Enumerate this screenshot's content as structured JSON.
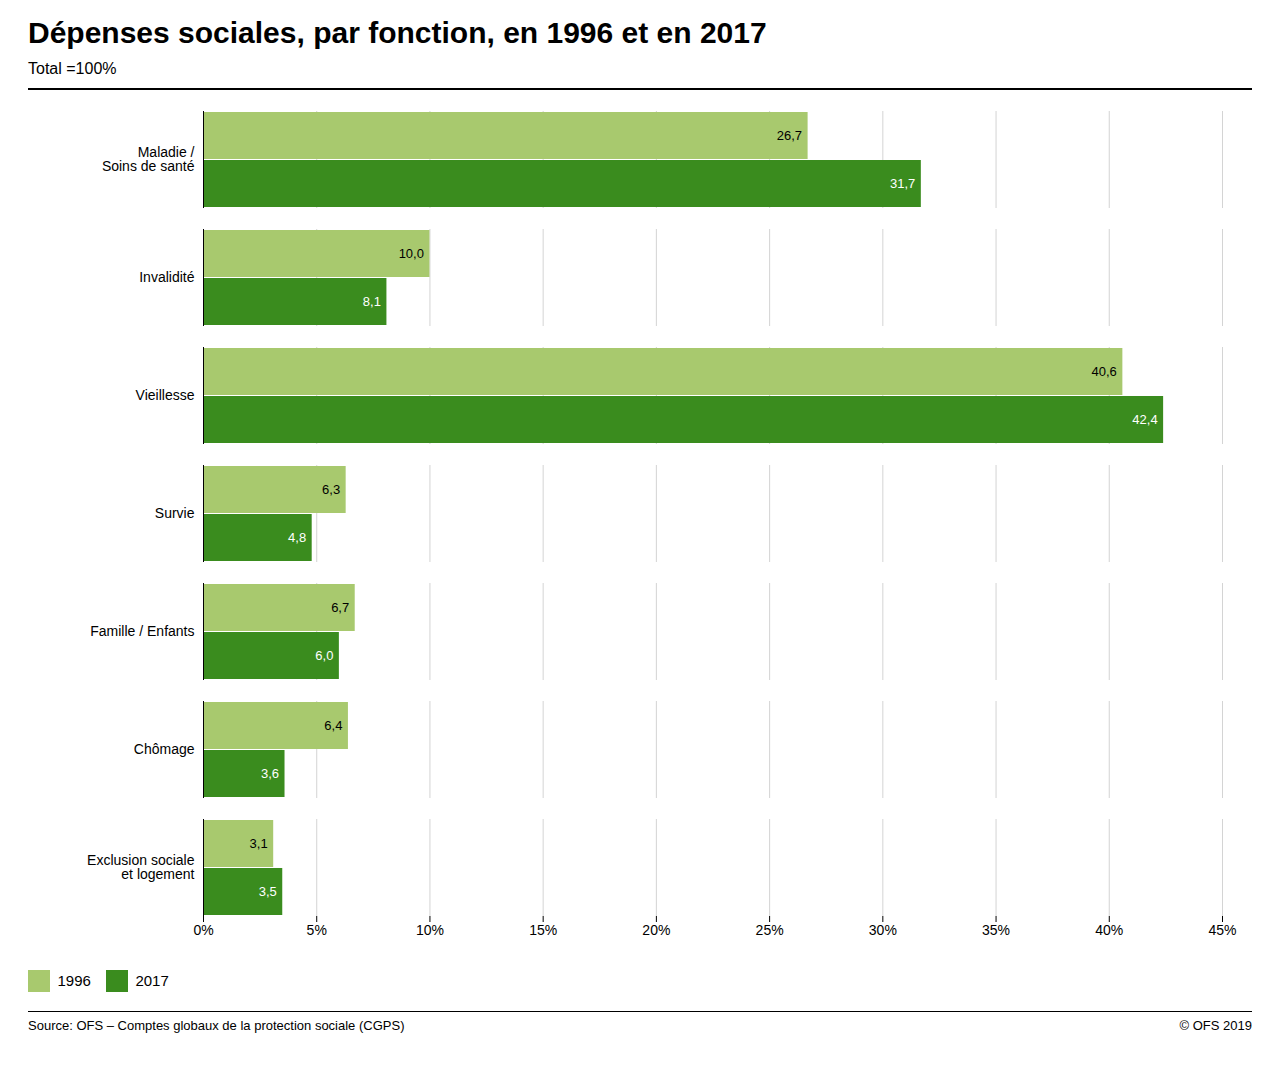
{
  "chart_data": {
    "type": "bar",
    "orientation": "horizontal",
    "title": "Dépenses sociales, par fonction, en 1996 et en 2017",
    "subtitle": "Total =100%",
    "source": "Source: OFS – Comptes globaux de la protection sociale (CGPS)",
    "copyright": "© OFS 2019",
    "categories": [
      "Maladie /\nSoins de santé",
      "Invalidité",
      "Vieillesse",
      "Survie",
      "Famille / Enfants",
      "Chômage",
      "Exclusion sociale\net logement"
    ],
    "series": [
      {
        "name": "1996",
        "color": "#a8c96e",
        "values": [
          26.7,
          10.0,
          40.6,
          6.3,
          6.7,
          6.4,
          3.1
        ],
        "value_labels": [
          "26,7",
          "10,0",
          "40,6",
          "6,3",
          "6,7",
          "6,4",
          "3,1"
        ]
      },
      {
        "name": "2017",
        "color": "#3a8c1e",
        "values": [
          31.7,
          8.1,
          42.4,
          4.8,
          6.0,
          3.6,
          3.5
        ],
        "value_labels": [
          "31,7",
          "8,1",
          "42,4",
          "4,8",
          "6,0",
          "3,6",
          "3,5"
        ]
      }
    ],
    "xlim": [
      0,
      45
    ],
    "xticks": [
      {
        "value": 0,
        "label": "0%"
      },
      {
        "value": 5,
        "label": "5%"
      },
      {
        "value": 10,
        "label": "10%"
      },
      {
        "value": 15,
        "label": "15%"
      },
      {
        "value": 20,
        "label": "20%"
      },
      {
        "value": 25,
        "label": "25%"
      },
      {
        "value": 30,
        "label": "30%"
      },
      {
        "value": 35,
        "label": "35%"
      },
      {
        "value": 40,
        "label": "40%"
      },
      {
        "value": 45,
        "label": "45%"
      }
    ],
    "grid": true,
    "legend": "bottom-left",
    "data_labels": true
  }
}
